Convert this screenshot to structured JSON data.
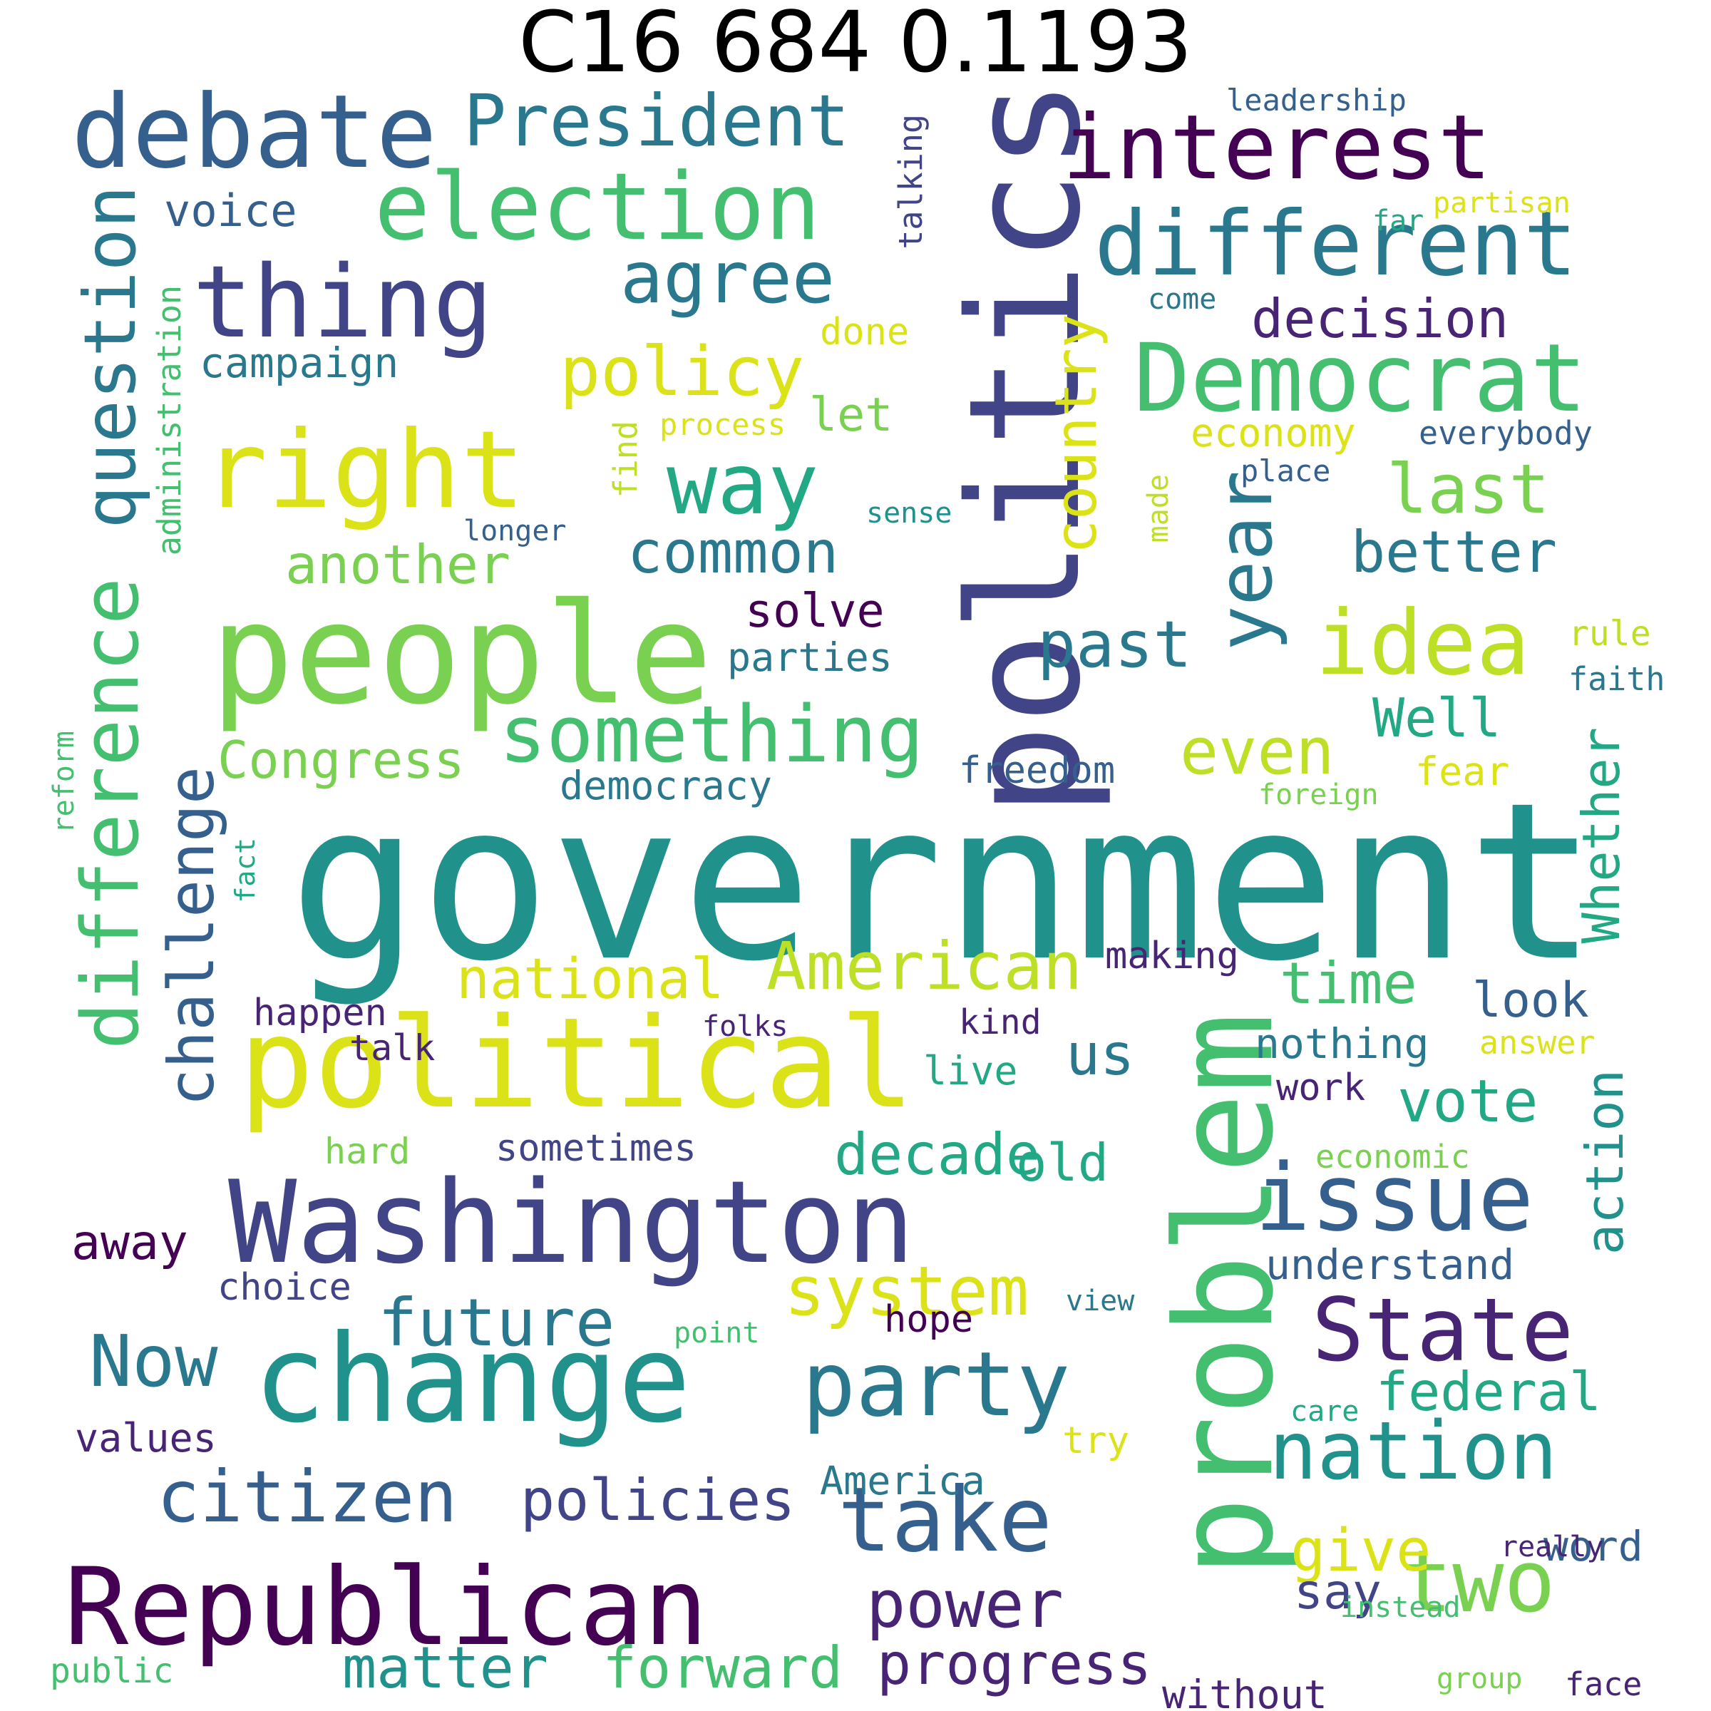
{
  "title": "C16 684 0.1193",
  "palette": {
    "v00": "#440154",
    "v01": "#482475",
    "v02": "#414487",
    "v03": "#355f8d",
    "v04": "#2a788e",
    "v05": "#21918c",
    "v06": "#22a884",
    "v07": "#44bf70",
    "v08": "#7ad151",
    "v09": "#bddf26",
    "v10": "#dbe318"
  },
  "words": [
    {
      "text": "government",
      "color": "v05"
    },
    {
      "text": "politics",
      "color": "v02"
    },
    {
      "text": "problem",
      "color": "v07"
    },
    {
      "text": "people",
      "color": "v08"
    },
    {
      "text": "political",
      "color": "v10"
    },
    {
      "text": "change",
      "color": "v05"
    },
    {
      "text": "Washington",
      "color": "v02"
    },
    {
      "text": "Republican",
      "color": "v00"
    },
    {
      "text": "right",
      "color": "v10"
    },
    {
      "text": "debate",
      "color": "v03"
    },
    {
      "text": "thing",
      "color": "v02"
    },
    {
      "text": "election",
      "color": "v07"
    },
    {
      "text": "interest",
      "color": "v00"
    },
    {
      "text": "different",
      "color": "v04"
    },
    {
      "text": "Democrat",
      "color": "v07"
    },
    {
      "text": "difference",
      "color": "v07"
    },
    {
      "text": "year",
      "color": "v04"
    },
    {
      "text": "issue",
      "color": "v03"
    },
    {
      "text": "party",
      "color": "v04"
    },
    {
      "text": "take",
      "color": "v03"
    },
    {
      "text": "State",
      "color": "v01"
    },
    {
      "text": "nation",
      "color": "v05"
    },
    {
      "text": "idea",
      "color": "v09"
    },
    {
      "text": "two",
      "color": "v08"
    },
    {
      "text": "way",
      "color": "v06"
    },
    {
      "text": "something",
      "color": "v07"
    },
    {
      "text": "question",
      "color": "v04"
    },
    {
      "text": "President",
      "color": "v04"
    },
    {
      "text": "agree",
      "color": "v04"
    },
    {
      "text": "citizen",
      "color": "v03"
    },
    {
      "text": "challenge",
      "color": "v03"
    },
    {
      "text": "American",
      "color": "v09"
    },
    {
      "text": "power",
      "color": "v01"
    },
    {
      "text": "system",
      "color": "v10"
    },
    {
      "text": "Now",
      "color": "v04"
    },
    {
      "text": "policy",
      "color": "v10"
    },
    {
      "text": "past",
      "color": "v04"
    },
    {
      "text": "country",
      "color": "v10"
    },
    {
      "text": "last",
      "color": "v08"
    },
    {
      "text": "even",
      "color": "v09"
    },
    {
      "text": "future",
      "color": "v04"
    },
    {
      "text": "policies",
      "color": "v02"
    },
    {
      "text": "matter",
      "color": "v05"
    },
    {
      "text": "forward",
      "color": "v07"
    },
    {
      "text": "progress",
      "color": "v01"
    },
    {
      "text": "decade",
      "color": "v06"
    },
    {
      "text": "vote",
      "color": "v06"
    },
    {
      "text": "common",
      "color": "v04"
    },
    {
      "text": "national",
      "color": "v10"
    },
    {
      "text": "another",
      "color": "v08"
    },
    {
      "text": "better",
      "color": "v04"
    },
    {
      "text": "Congress",
      "color": "v08"
    },
    {
      "text": "give",
      "color": "v10"
    },
    {
      "text": "time",
      "color": "v07"
    },
    {
      "text": "us",
      "color": "v04"
    },
    {
      "text": "federal",
      "color": "v06"
    },
    {
      "text": "decision",
      "color": "v01"
    },
    {
      "text": "Whether",
      "color": "v06"
    },
    {
      "text": "Well",
      "color": "v06"
    },
    {
      "text": "action",
      "color": "v05"
    },
    {
      "text": "old",
      "color": "v06"
    },
    {
      "text": "solve",
      "color": "v00"
    },
    {
      "text": "away",
      "color": "v00"
    },
    {
      "text": "look",
      "color": "v03"
    },
    {
      "text": "say",
      "color": "v02"
    },
    {
      "text": "campaign",
      "color": "v04"
    },
    {
      "text": "voice",
      "color": "v03"
    },
    {
      "text": "values",
      "color": "v01"
    },
    {
      "text": "understand",
      "color": "v03"
    },
    {
      "text": "word",
      "color": "v03"
    },
    {
      "text": "nothing",
      "color": "v04"
    },
    {
      "text": "democracy",
      "color": "v04"
    },
    {
      "text": "sometimes",
      "color": "v02"
    },
    {
      "text": "freedom",
      "color": "v03"
    },
    {
      "text": "parties",
      "color": "v04"
    },
    {
      "text": "let",
      "color": "v08"
    },
    {
      "text": "without",
      "color": "v01"
    },
    {
      "text": "America",
      "color": "v04"
    },
    {
      "text": "economy",
      "color": "v10"
    },
    {
      "text": "administration",
      "color": "v07"
    },
    {
      "text": "talking",
      "color": "v02"
    },
    {
      "text": "done",
      "color": "v10"
    },
    {
      "text": "find",
      "color": "v09"
    },
    {
      "text": "work",
      "color": "v01"
    },
    {
      "text": "happen",
      "color": "v01"
    },
    {
      "text": "fear",
      "color": "v10"
    },
    {
      "text": "making",
      "color": "v01"
    },
    {
      "text": "hope",
      "color": "v00"
    },
    {
      "text": "choice",
      "color": "v02"
    },
    {
      "text": "live",
      "color": "v06"
    },
    {
      "text": "talk",
      "color": "v01"
    },
    {
      "text": "kind",
      "color": "v01"
    },
    {
      "text": "hard",
      "color": "v08"
    },
    {
      "text": "everybody",
      "color": "v03"
    },
    {
      "text": "reform",
      "color": "v07"
    },
    {
      "text": "made",
      "color": "v09"
    },
    {
      "text": "rule",
      "color": "v09"
    },
    {
      "text": "economic",
      "color": "v08"
    },
    {
      "text": "try",
      "color": "v10"
    },
    {
      "text": "faith",
      "color": "v04"
    },
    {
      "text": "answer",
      "color": "v10"
    },
    {
      "text": "place",
      "color": "v03"
    },
    {
      "text": "public",
      "color": "v07"
    },
    {
      "text": "leadership",
      "color": "v03"
    },
    {
      "text": "partisan",
      "color": "v10"
    },
    {
      "text": "process",
      "color": "v10"
    },
    {
      "text": "fact",
      "color": "v06"
    },
    {
      "text": "longer",
      "color": "v03"
    },
    {
      "text": "folks",
      "color": "v01"
    },
    {
      "text": "view",
      "color": "v04"
    },
    {
      "text": "instead",
      "color": "v07"
    },
    {
      "text": "face",
      "color": "v01"
    },
    {
      "text": "really",
      "color": "v01"
    },
    {
      "text": "foreign",
      "color": "v08"
    },
    {
      "text": "sense",
      "color": "v05"
    },
    {
      "text": "point",
      "color": "v07"
    },
    {
      "text": "group",
      "color": "v08"
    },
    {
      "text": "care",
      "color": "v06"
    },
    {
      "text": "come",
      "color": "v04"
    },
    {
      "text": "far",
      "color": "v06"
    }
  ]
}
